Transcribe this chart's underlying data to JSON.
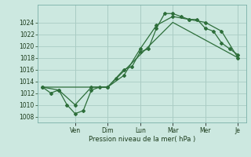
{
  "background_color": "#cce8e0",
  "grid_color": "#aaccc4",
  "line_color": "#2d6e3a",
  "xlabel": "Pression niveau de la mer( hPa )",
  "ylim": [
    1007,
    1027
  ],
  "yticks": [
    1008,
    1010,
    1012,
    1014,
    1016,
    1018,
    1020,
    1022,
    1024
  ],
  "line1_x": [
    0,
    0.5,
    1.0,
    1.5,
    2.0,
    2.5,
    3.0,
    3.5,
    4.0,
    4.5,
    5.0,
    5.5,
    6.0,
    6.5,
    7.0,
    7.5,
    8.0,
    8.5,
    9.0,
    9.5,
    10.0,
    10.5,
    11.0,
    11.5,
    12.0
  ],
  "line1_y": [
    1013.0,
    1012.0,
    1012.5,
    1010.0,
    1008.5,
    1009.0,
    1012.5,
    1013.0,
    1013.0,
    1014.5,
    1016.0,
    1016.5,
    1019.0,
    1019.5,
    1023.0,
    1025.5,
    1025.5,
    1025.0,
    1024.5,
    1024.5,
    1023.0,
    1022.5,
    1020.5,
    1019.5,
    1018.5
  ],
  "line2_x": [
    0,
    1.0,
    2.0,
    3.0,
    4.0,
    5.0,
    6.0,
    7.0,
    8.0,
    9.0,
    10.0,
    11.0,
    12.0
  ],
  "line2_y": [
    1013.0,
    1012.5,
    1010.0,
    1013.0,
    1013.0,
    1015.0,
    1019.5,
    1023.5,
    1025.0,
    1024.5,
    1024.0,
    1022.5,
    1018.0
  ],
  "line3_x": [
    0,
    4.0,
    8.0,
    12.0
  ],
  "line3_y": [
    1013.0,
    1013.0,
    1024.0,
    1018.0
  ],
  "xtick_positions": [
    2,
    4,
    6,
    8,
    10,
    12
  ],
  "xtick_labels": [
    "Ven",
    "Dim",
    "Lun",
    "Mar",
    "Mer",
    "Je"
  ]
}
